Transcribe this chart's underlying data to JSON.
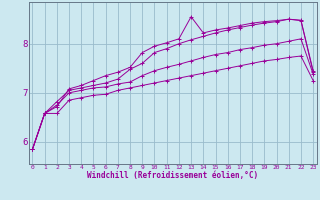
{
  "xlabel": "Windchill (Refroidissement éolien,°C)",
  "background_color": "#cce8f0",
  "line_color": "#990099",
  "grid_color": "#99bbcc",
  "x_ticks": [
    0,
    1,
    2,
    3,
    4,
    5,
    6,
    7,
    8,
    9,
    10,
    11,
    12,
    13,
    14,
    15,
    16,
    17,
    18,
    19,
    20,
    21,
    22,
    23
  ],
  "y_ticks": [
    6,
    7,
    8
  ],
  "xlim": [
    -0.3,
    23.3
  ],
  "ylim": [
    5.55,
    8.85
  ],
  "series": [
    [
      5.85,
      6.58,
      6.58,
      6.85,
      6.9,
      6.95,
      6.97,
      7.05,
      7.1,
      7.15,
      7.2,
      7.25,
      7.3,
      7.35,
      7.4,
      7.45,
      7.5,
      7.55,
      7.6,
      7.65,
      7.68,
      7.72,
      7.75,
      7.25
    ],
    [
      5.85,
      6.58,
      6.75,
      7.0,
      7.05,
      7.1,
      7.12,
      7.18,
      7.22,
      7.35,
      7.45,
      7.52,
      7.58,
      7.65,
      7.72,
      7.78,
      7.82,
      7.88,
      7.92,
      7.97,
      8.0,
      8.05,
      8.1,
      7.38
    ],
    [
      5.85,
      6.58,
      6.82,
      7.05,
      7.1,
      7.15,
      7.2,
      7.28,
      7.48,
      7.6,
      7.82,
      7.9,
      8.0,
      8.08,
      8.15,
      8.22,
      8.28,
      8.33,
      8.38,
      8.42,
      8.45,
      8.5,
      8.47,
      7.42
    ],
    [
      5.85,
      6.58,
      6.72,
      7.08,
      7.15,
      7.25,
      7.35,
      7.42,
      7.52,
      7.82,
      7.95,
      8.02,
      8.1,
      8.55,
      8.22,
      8.28,
      8.32,
      8.37,
      8.42,
      8.45,
      8.47,
      8.5,
      8.48,
      7.45
    ]
  ]
}
